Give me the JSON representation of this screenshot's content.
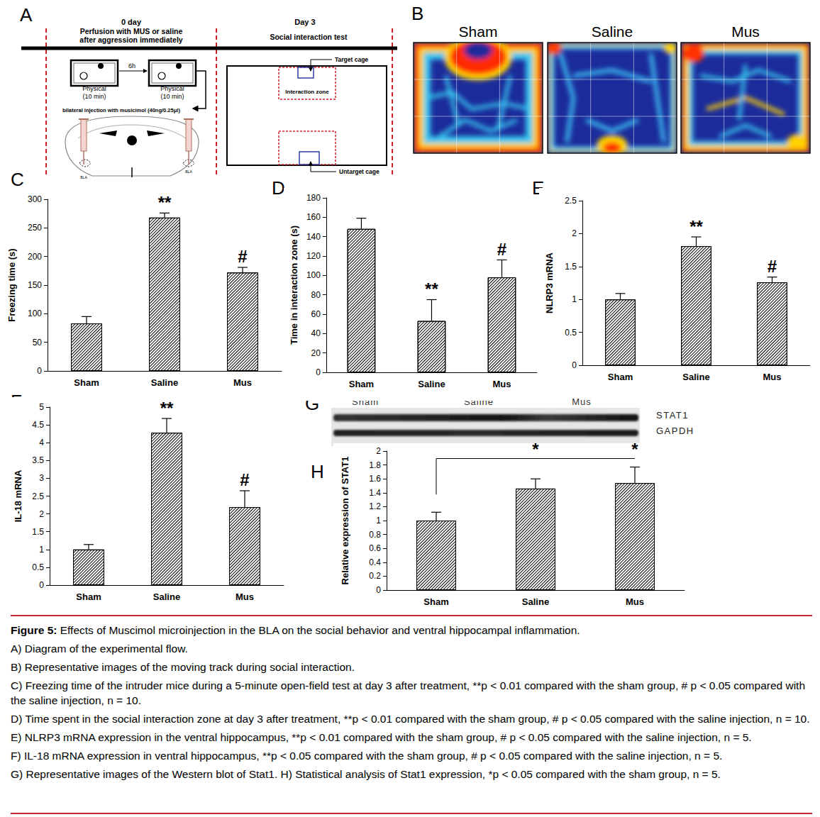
{
  "figure": {
    "panel_a": {
      "label": "A",
      "day0": "0 day",
      "day0_note": [
        "Perfusion with MUS or saline",
        "after aggression immediately"
      ],
      "day3": "Day 3",
      "day3_note": "Social interaction test",
      "interval": "6h",
      "session": [
        "Physical",
        "(10 min)"
      ],
      "injection": "bilateral injection with musicimol (40ng/0.25μl)",
      "region": "BLA",
      "target": "Target cage",
      "zone": "Interaction zone",
      "untarget": "Untarget cage"
    },
    "panel_b": {
      "label": "B",
      "groups": [
        "Sham",
        "Saline",
        "Mus"
      ]
    },
    "panel_g": {
      "label": "G",
      "groups": [
        "Sham",
        "Saline",
        "Mus"
      ],
      "bands": [
        "STAT1",
        "GAPDH"
      ]
    },
    "caption": {
      "title": "Figure 5:",
      "text": "Effects of Muscimol microinjection in the BLA on the social behavior and ventral hippocampal inflammation.",
      "lines": [
        "A) Diagram of the experimental flow.",
        "B) Representative images of the moving track during social interaction.",
        "C) Freezing time of the intruder mice during a 5-minute open-field test at day 3 after treatment, **p < 0.01 compared with the sham group, # p < 0.05 compared with the saline injection, n = 10.",
        "D) Time spent in the social interaction zone at day 3 after treatment, **p < 0.01 compared with the sham group, # p < 0.05 compared with the saline injection, n = 10.",
        "E) NLRP3 mRNA expression in the ventral hippocampus, **p < 0.01 compared with the sham group, # p < 0.05 compared with the saline injection, n = 5.",
        "F) IL-18 mRNA expression in ventral hippocampus, **p < 0.05 compared with the sham group, # p < 0.05 compared with the saline injection, n = 5.",
        "G) Representative images of the Western blot of Stat1. H) Statistical analysis of Stat1 expression, *p < 0.05 compared with the sham group, n = 5."
      ]
    }
  },
  "chart_data": [
    {
      "panel": "C",
      "type": "bar",
      "y_label": "Freezing time (s)",
      "categories": [
        "Sham",
        "Saline",
        "Mus"
      ],
      "values": [
        83,
        268,
        172
      ],
      "errors": [
        12,
        8,
        9
      ],
      "color": "#000000",
      "ylim": [
        0,
        300
      ],
      "yticks": [
        0,
        50,
        100,
        150,
        200,
        250,
        300
      ],
      "grid": false,
      "annotations": [
        {
          "category": "Saline",
          "text": "**"
        },
        {
          "category": "Mus",
          "text": "#"
        }
      ]
    },
    {
      "panel": "D",
      "type": "bar",
      "y_label": "Time in interaction zone (s)",
      "categories": [
        "Sham",
        "Saline",
        "Mus"
      ],
      "values": [
        148,
        53,
        98
      ],
      "errors": [
        11,
        22,
        18
      ],
      "color": "#000000",
      "ylim": [
        0,
        180
      ],
      "yticks": [
        0,
        20,
        40,
        60,
        80,
        100,
        120,
        140,
        160,
        180
      ],
      "grid": false,
      "annotations": [
        {
          "category": "Saline",
          "text": "**"
        },
        {
          "category": "Mus",
          "text": "#"
        }
      ]
    },
    {
      "panel": "E",
      "type": "bar",
      "y_label": "NLRP3 mRNA",
      "categories": [
        "Sham",
        "Saline",
        "Mus"
      ],
      "values": [
        1.0,
        1.81,
        1.26
      ],
      "errors": [
        0.09,
        0.14,
        0.08
      ],
      "color": "#000000",
      "ylim": [
        0,
        2.5
      ],
      "yticks": [
        0,
        0.5,
        1,
        1.5,
        2,
        2.5
      ],
      "grid": false,
      "annotations": [
        {
          "category": "Saline",
          "text": "**"
        },
        {
          "category": "Mus",
          "text": "#"
        }
      ]
    },
    {
      "panel": "F",
      "type": "bar",
      "y_label": "IL-18 mRNA",
      "categories": [
        "Sham",
        "Saline",
        "Mus"
      ],
      "values": [
        1.0,
        4.28,
        2.19
      ],
      "errors": [
        0.14,
        0.4,
        0.46
      ],
      "color": "#000000",
      "ylim": [
        0,
        5
      ],
      "yticks": [
        0,
        0.5,
        1,
        1.5,
        2,
        2.5,
        3,
        3.5,
        4,
        4.5,
        5
      ],
      "grid": false,
      "annotations": [
        {
          "category": "Saline",
          "text": "**"
        },
        {
          "category": "Mus",
          "text": "#"
        }
      ]
    },
    {
      "panel": "H",
      "type": "bar",
      "y_label": "Relative expression of STAT1",
      "categories": [
        "Sham",
        "Saline",
        "Mus"
      ],
      "values": [
        1.0,
        1.46,
        1.54
      ],
      "errors": [
        0.12,
        0.14,
        0.23
      ],
      "color": "#000000",
      "ylim": [
        0,
        2
      ],
      "yticks": [
        0,
        0.2,
        0.4,
        0.6,
        0.8,
        1,
        1.2,
        1.4,
        1.6,
        1.8,
        2
      ],
      "grid": false,
      "bracket": {
        "from": "Sham",
        "to": "Mus"
      },
      "annotations": [
        {
          "category": "Saline",
          "text": "*"
        },
        {
          "category": "Mus",
          "text": "*"
        }
      ]
    }
  ]
}
